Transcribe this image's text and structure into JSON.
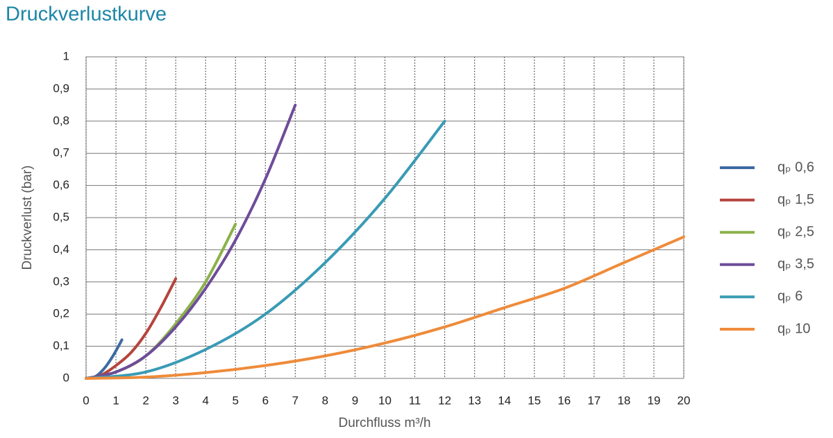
{
  "chart_data": {
    "type": "line",
    "title": "Druckverlustkurve",
    "y_label": "Druckverlust (bar)",
    "x_label": "Durchfluss m³/h",
    "xlim": [
      0,
      20
    ],
    "xticks": [
      0,
      1,
      2,
      3,
      4,
      5,
      6,
      7,
      8,
      9,
      10,
      11,
      12,
      13,
      14,
      15,
      16,
      17,
      18,
      19,
      20
    ],
    "ylim": [
      0,
      1
    ],
    "yticks": [
      0,
      {
        "value": 0.1,
        "label": "0,1"
      },
      {
        "value": 0.2,
        "label": "0,2"
      },
      {
        "value": 0.3,
        "label": "0,3"
      },
      {
        "value": 0.4,
        "label": "0,4"
      },
      {
        "value": 0.5,
        "label": "0,5"
      },
      {
        "value": 0.6,
        "label": "0,6"
      },
      {
        "value": 0.7,
        "label": "0,7"
      },
      {
        "value": 0.8,
        "label": "0,8"
      },
      {
        "value": 0.9,
        "label": "0,9"
      },
      1
    ],
    "grid": true,
    "legend": "right",
    "series": [
      {
        "name": "qₚ 0,6",
        "color": "#3c6aa3",
        "x": [
          0,
          0.3,
          0.6,
          0.9,
          1.2
        ],
        "values": [
          0,
          0.005,
          0.03,
          0.07,
          0.12
        ]
      },
      {
        "name": "qₚ 1,5",
        "color": "#b5443d",
        "x": [
          0,
          0.5,
          1,
          1.5,
          2,
          2.5,
          3
        ],
        "values": [
          0,
          0.01,
          0.04,
          0.08,
          0.14,
          0.22,
          0.31
        ]
      },
      {
        "name": "qₚ 2,5",
        "color": "#8bb24a",
        "x": [
          0,
          1,
          2,
          3,
          4,
          5
        ],
        "values": [
          0,
          0.02,
          0.07,
          0.17,
          0.3,
          0.48
        ]
      },
      {
        "name": "qₚ 3,5",
        "color": "#6e4c9a",
        "x": [
          0,
          1,
          2,
          3,
          4,
          5,
          6,
          7
        ],
        "values": [
          0,
          0.02,
          0.07,
          0.16,
          0.28,
          0.43,
          0.62,
          0.85
        ]
      },
      {
        "name": "qₚ 6",
        "color": "#3a9bb5",
        "x": [
          0,
          2,
          4,
          6,
          8,
          10,
          12
        ],
        "values": [
          0,
          0.02,
          0.09,
          0.2,
          0.36,
          0.56,
          0.8
        ]
      },
      {
        "name": "qₚ 10",
        "color": "#ef8b3a",
        "x": [
          0,
          2,
          4,
          6,
          8,
          10,
          12,
          14,
          16,
          18,
          20
        ],
        "values": [
          0,
          0.004,
          0.018,
          0.04,
          0.07,
          0.11,
          0.16,
          0.22,
          0.28,
          0.36,
          0.44
        ]
      }
    ]
  }
}
